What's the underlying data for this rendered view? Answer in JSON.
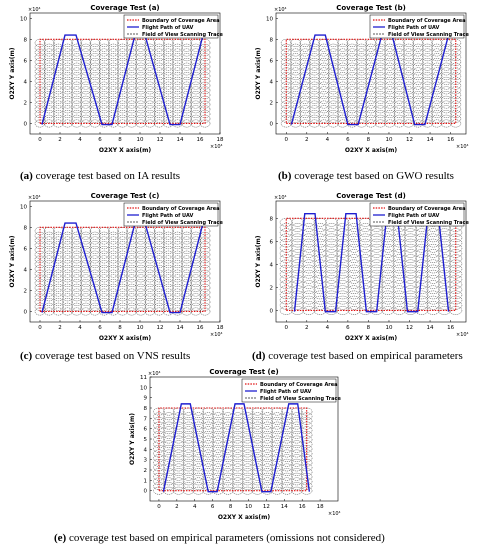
{
  "legend": {
    "boundary": "Boundary of Coverage Area",
    "flight": "Flight Path of UAV",
    "fov": "Field of View Scanning Trace"
  },
  "colors": {
    "boundary": "#e01010",
    "flight": "#1f1fd0",
    "fov": "#222222"
  },
  "chart_data": [
    {
      "type": "line",
      "panel": "a",
      "title": "Coverage Test (a)",
      "xlabel": "O2XY X axis(m)",
      "ylabel": "O2XY Y axis(m)",
      "x_exponent": "×10⁴",
      "y_exponent": "×10⁴",
      "xlim": [
        -1,
        18
      ],
      "ylim": [
        -1,
        10.5
      ],
      "xticks": [
        0,
        2,
        4,
        6,
        8,
        10,
        12,
        14,
        16,
        18
      ],
      "yticks": [
        0,
        2,
        4,
        6,
        8,
        10
      ],
      "boundary": {
        "x": [
          0,
          16.5,
          16.5,
          0,
          0
        ],
        "y": [
          0,
          0,
          8,
          8,
          0
        ]
      },
      "flight_path_x": [
        0.2,
        2.5,
        3.6,
        6.2,
        7.2,
        9.5,
        10.5,
        13.0,
        14.0,
        16.3
      ],
      "fov_trace_count": 19,
      "caption_label": "(a)",
      "caption_text": " coverage test based on IA results"
    },
    {
      "type": "line",
      "panel": "b",
      "title": "Coverage Test (b)",
      "xlabel": "O2XY X axis(m)",
      "ylabel": "O2XY Y axis(m)",
      "x_exponent": "×10⁴",
      "y_exponent": "×10⁴",
      "xlim": [
        -1,
        17.5
      ],
      "ylim": [
        -1,
        10.5
      ],
      "xticks": [
        0,
        2,
        4,
        6,
        8,
        10,
        12,
        14,
        16
      ],
      "yticks": [
        0,
        2,
        4,
        6,
        8,
        10
      ],
      "boundary": {
        "x": [
          0,
          16.5,
          16.5,
          0,
          0
        ],
        "y": [
          0,
          0,
          8,
          8,
          0
        ]
      },
      "flight_path_x": [
        0.5,
        2.8,
        3.8,
        6.0,
        7.0,
        9.3,
        10.3,
        12.5,
        13.5,
        15.8
      ],
      "fov_trace_count": 19,
      "caption_label": "(b)",
      "caption_text": " coverage test based on GWO results"
    },
    {
      "type": "line",
      "panel": "c",
      "title": "Coverage Test (c)",
      "xlabel": "O2XY X axis(m)",
      "ylabel": "O2XY Y axis(m)",
      "x_exponent": "×10⁴",
      "y_exponent": "×10⁴",
      "xlim": [
        -1,
        18
      ],
      "ylim": [
        -1,
        10.5
      ],
      "xticks": [
        0,
        2,
        4,
        6,
        8,
        10,
        12,
        14,
        16,
        18
      ],
      "yticks": [
        0,
        2,
        4,
        6,
        8,
        10
      ],
      "boundary": {
        "x": [
          0,
          16.5,
          16.5,
          0,
          0
        ],
        "y": [
          0,
          0,
          8,
          8,
          0
        ]
      },
      "flight_path_x": [
        0.2,
        2.5,
        3.6,
        6.2,
        7.2,
        9.5,
        10.5,
        13.0,
        14.0,
        16.3
      ],
      "fov_trace_count": 19,
      "caption_label": "(c)",
      "caption_text": " coverage test based on VNS results"
    },
    {
      "type": "line",
      "panel": "d",
      "title": "Coverage Test (d)",
      "xlabel": "O2XY X axis(m)",
      "ylabel": "O2XY Y axis(m)",
      "x_exponent": "×10⁴",
      "y_exponent": "×10⁴",
      "xlim": [
        -1,
        17.5
      ],
      "ylim": [
        -1,
        9.5
      ],
      "xticks": [
        0,
        2,
        4,
        6,
        8,
        10,
        12,
        14,
        16
      ],
      "yticks": [
        0,
        2,
        4,
        6,
        8
      ],
      "boundary": {
        "x": [
          0,
          16.5,
          16.5,
          0,
          0
        ],
        "y": [
          0,
          0,
          8,
          8,
          0
        ]
      },
      "flight_path_x": [
        0.8,
        1.8,
        2.8,
        3.8,
        4.8,
        5.8,
        6.8,
        7.8,
        8.8,
        9.8,
        10.8,
        11.8,
        12.8,
        13.8,
        14.8,
        15.8
      ],
      "fov_trace_count": 16,
      "caption_label": "(d)",
      "caption_text": " coverage test based on empirical parameters"
    },
    {
      "type": "line",
      "panel": "e",
      "title": "Coverage Test (e)",
      "xlabel": "O2XY X axis(m)",
      "ylabel": "O2XY Y axis(m)",
      "x_exponent": "×10⁴",
      "y_exponent": "×10⁴",
      "xlim": [
        -1,
        20
      ],
      "ylim": [
        -1,
        11
      ],
      "xticks": [
        0,
        2,
        4,
        6,
        8,
        10,
        12,
        14,
        16,
        18
      ],
      "yticks": [
        0,
        1,
        2,
        3,
        4,
        5,
        6,
        7,
        8,
        9,
        10,
        11
      ],
      "boundary": {
        "x": [
          0,
          16.5,
          16.5,
          0,
          0
        ],
        "y": [
          0,
          0,
          8,
          8,
          0
        ]
      },
      "flight_path_x": [
        0.5,
        2.5,
        3.5,
        5.5,
        6.5,
        8.5,
        9.5,
        11.5,
        12.5,
        14.5,
        15.5,
        16.8
      ],
      "fov_trace_count": 16,
      "caption_label": "(e)",
      "caption_text": " coverage test based on empirical parameters (omissions not considered)"
    }
  ]
}
